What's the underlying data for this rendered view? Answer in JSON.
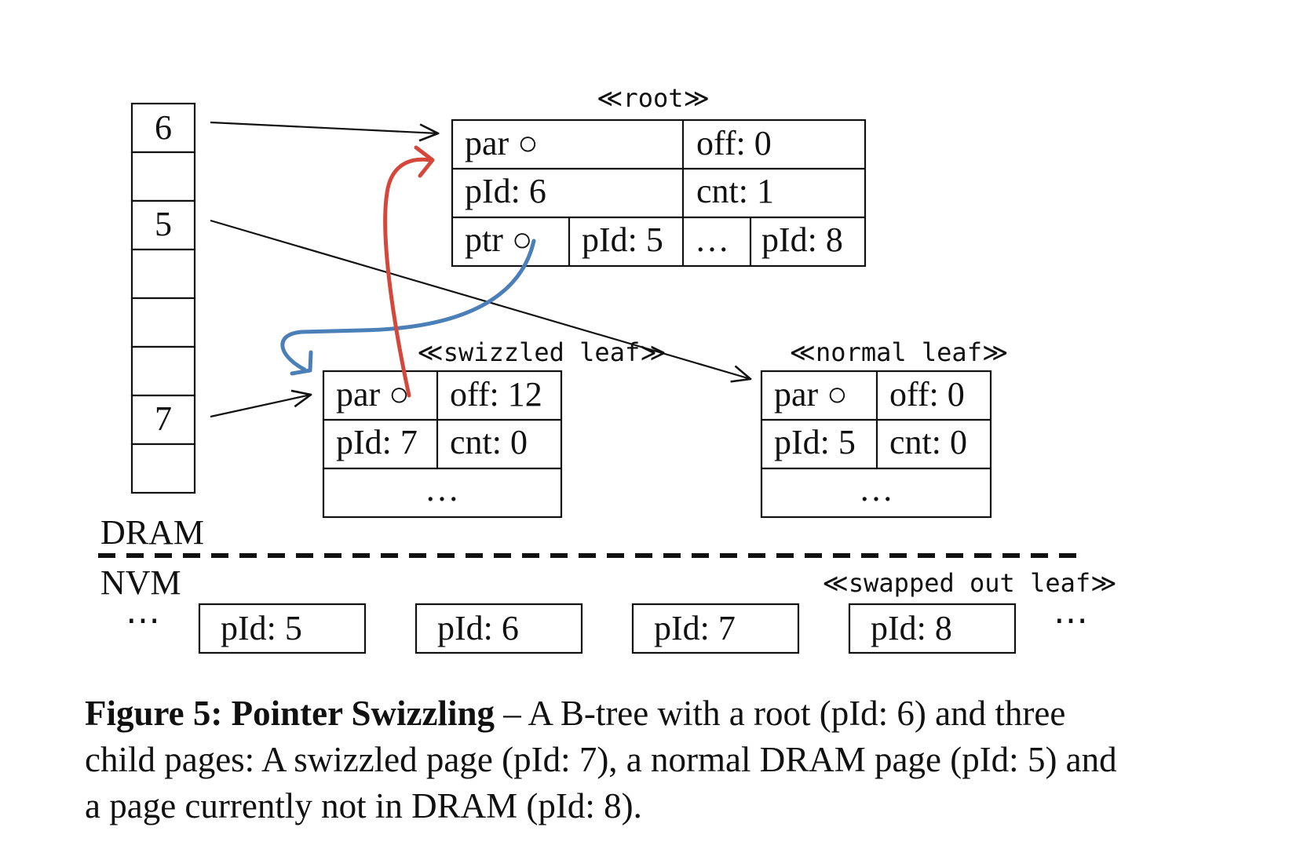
{
  "page_table": {
    "slots": [
      "6",
      "",
      "5",
      "",
      "",
      "",
      "7",
      ""
    ]
  },
  "stereotypes": {
    "root": "≪root≫",
    "swizzled_leaf": "≪swizzled leaf≫",
    "normal_leaf": "≪normal leaf≫",
    "swapped_out_leaf": "≪swapped out leaf≫"
  },
  "root_page": {
    "par": "par ○",
    "off": "off: 0",
    "pid": "pId: 6",
    "cnt": "cnt: 1",
    "ptr": "ptr ○",
    "child_pid_5": "pId: 5",
    "ellipsis": "…",
    "child_pid_8": "pId: 8"
  },
  "swizzled_leaf": {
    "par": "par ○",
    "off": "off: 12",
    "pid": "pId: 7",
    "cnt": "cnt: 0",
    "ellipsis": "…"
  },
  "normal_leaf": {
    "par": "par ○",
    "off": "off: 0",
    "pid": "pId: 5",
    "cnt": "cnt: 0",
    "ellipsis": "…"
  },
  "memory_labels": {
    "dram": "DRAM",
    "nvm": "NVM"
  },
  "nvm_pages": {
    "left_ellipsis": "⋯",
    "pages": [
      "pId: 5",
      "pId: 6",
      "pId: 7",
      "pId: 8"
    ],
    "right_ellipsis": "⋯"
  },
  "arrow_colors": {
    "swizzled_pointer": "#4a7fb8",
    "parent_pointer": "#d6473b",
    "plain": "#111111"
  },
  "caption": {
    "label": "Figure 5: Pointer Swizzling",
    "text": " – A B-tree with a root (pId: 6) and three child pages: A swizzled page (pId: 7), a normal DRAM page (pId: 5) and a page currently not in DRAM (pId: 8)."
  }
}
